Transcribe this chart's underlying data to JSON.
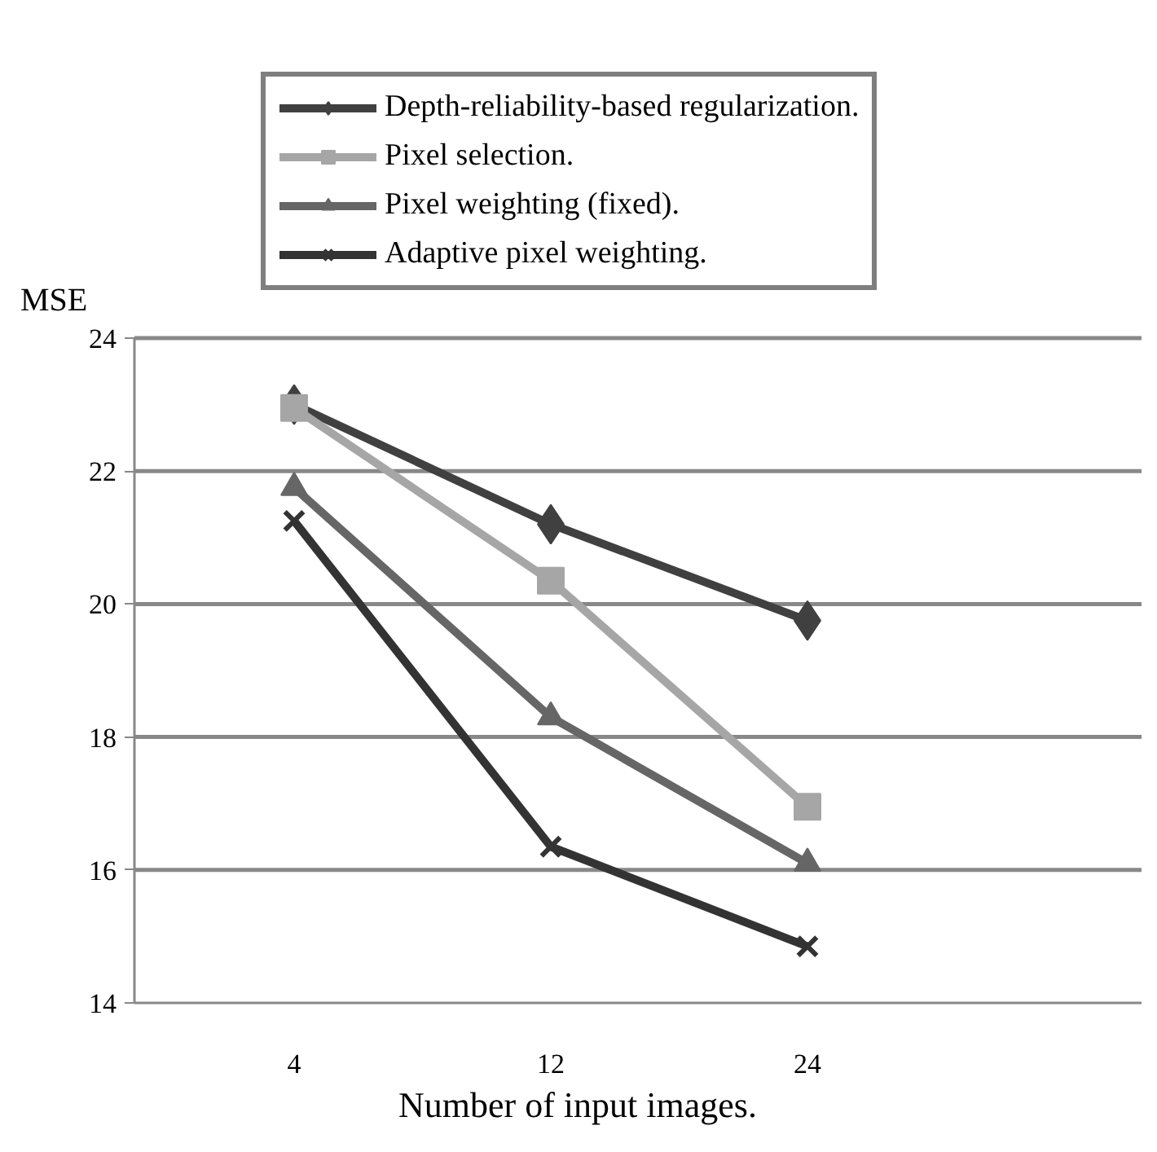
{
  "chart_data": {
    "type": "line",
    "xlabel": "Number of input images.",
    "ylabel": "MSE",
    "categories": [
      "4",
      "12",
      "24"
    ],
    "ylim": [
      14,
      24
    ],
    "yticks": [
      14,
      16,
      18,
      20,
      22,
      24
    ],
    "grid": "y",
    "legend": "top",
    "series": [
      {
        "name": "Depth-reliability-based regularization.",
        "color": "#404040",
        "marker": "diamond",
        "values": [
          23.0,
          21.2,
          19.75
        ]
      },
      {
        "name": "Pixel selection.",
        "color": "#a6a6a6",
        "marker": "square",
        "values": [
          22.95,
          20.35,
          16.95
        ]
      },
      {
        "name": "Pixel weighting (fixed).",
        "color": "#666666",
        "marker": "triangle",
        "values": [
          21.75,
          18.3,
          16.1
        ]
      },
      {
        "name": "Adaptive pixel weighting.",
        "color": "#333333",
        "marker": "cross",
        "values": [
          21.25,
          16.35,
          14.85
        ]
      }
    ]
  }
}
